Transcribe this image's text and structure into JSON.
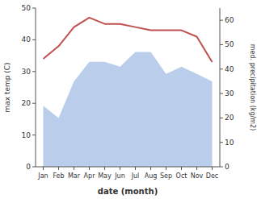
{
  "chart_data": {
    "type": "line",
    "xlabel": "date (month)",
    "ylabel": "max temp (C)",
    "y2label": "med. precipitation (kg/m2)",
    "categories": [
      "Jan",
      "Feb",
      "Mar",
      "Apr",
      "May",
      "Jun",
      "Jul",
      "Aug",
      "Sep",
      "Oct",
      "Nov",
      "Dec"
    ],
    "series": [
      {
        "type": "line",
        "color": "#c0504d",
        "values": [
          34,
          38,
          44,
          47,
          45,
          45,
          44,
          43,
          43,
          43,
          41,
          33
        ]
      },
      {
        "type": "area",
        "color": "#aec6e8",
        "axis": "y2",
        "values": [
          25,
          20,
          35,
          43,
          43,
          41,
          47,
          47,
          38,
          41,
          38,
          35
        ]
      }
    ],
    "ylim": [
      0,
      50
    ],
    "yticks": [
      0,
      10,
      20,
      30,
      40,
      50
    ],
    "y2lim": [
      0,
      65
    ],
    "y2ticks": [
      0,
      10,
      20,
      30,
      40,
      50,
      60
    ],
    "grid": false
  }
}
